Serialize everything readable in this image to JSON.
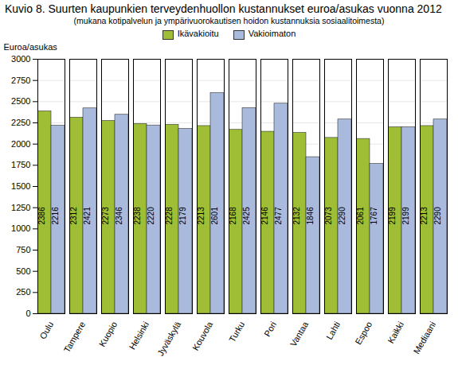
{
  "chart_data": {
    "type": "bar",
    "title": "Kuvio 8. Suurten kaupunkien terveydenhuollon kustannukset euroa/asukas vuonna 2012",
    "subtitle": "(mukana kotipalvelun ja ympärivuorokautisen hoidon kustannuksia sosiaalitoimesta)",
    "y_label": "Euroa/asukas",
    "categories": [
      "Oulu",
      "Tampere",
      "Kuopio",
      "Helsinki",
      "Jyväskylä",
      "Kouvola",
      "Turku",
      "Pori",
      "Vantaa",
      "Lahti",
      "Espoo",
      "Kaikki",
      "Mediaani"
    ],
    "series": [
      {
        "name": "Ikävakioitu",
        "color": "#9fbe35",
        "values": [
          2386,
          2312,
          2273,
          2238,
          2228,
          2213,
          2168,
          2146,
          2132,
          2073,
          2061,
          2199,
          2213
        ]
      },
      {
        "name": "Vakioimaton",
        "color": "#a9badd",
        "values": [
          2216,
          2421,
          2346,
          2220,
          2179,
          2601,
          2425,
          2477,
          1846,
          2290,
          1767,
          2199,
          2290
        ]
      }
    ],
    "ylim": [
      0,
      3000
    ],
    "yticks": [
      0,
      250,
      500,
      750,
      1000,
      1250,
      1500,
      1750,
      2000,
      2250,
      2500,
      2750,
      3000
    ],
    "grid": true,
    "legend": "top",
    "data_labels": true
  }
}
